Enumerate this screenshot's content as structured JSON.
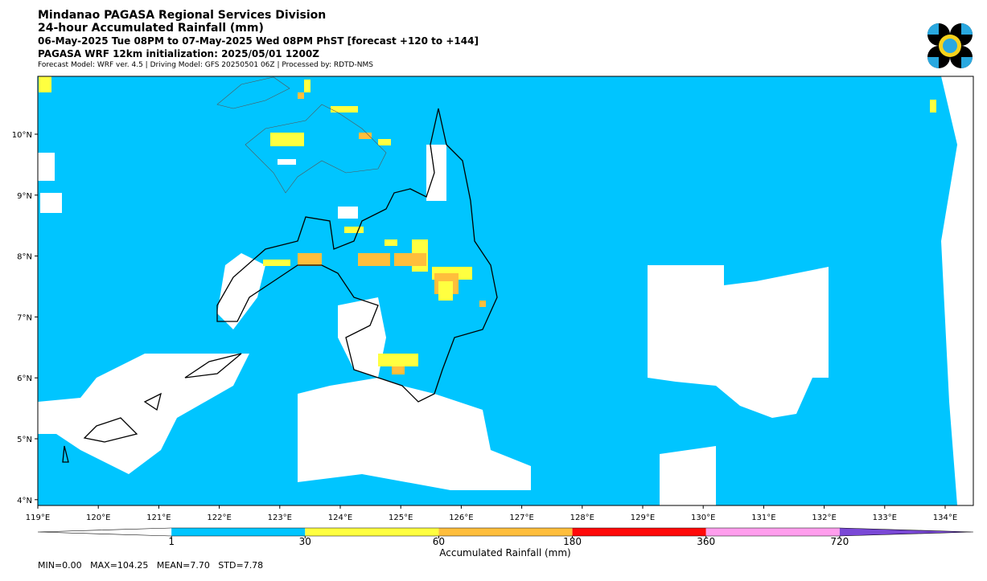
{
  "header": {
    "title": "Mindanao PAGASA Regional Services Division",
    "subtitle": "24-hour Accumulated Rainfall (mm)",
    "period": "06-May-2025 Tue 08PM to 07-May-2025 Wed 08PM PhST [forecast +120 to +144]",
    "model": "PAGASA WRF 12km initialization: 2025/05/01 1200Z",
    "credits": "Forecast Model: WRF ver. 4.5 | Driving Model: GFS 20250501 06Z | Processed by: RDTD-NMS"
  },
  "map": {
    "lon_labels": [
      "119°E",
      "120°E",
      "121°E",
      "122°E",
      "123°E",
      "124°E",
      "125°E",
      "126°E",
      "127°E",
      "128°E",
      "129°E",
      "130°E",
      "131°E",
      "132°E",
      "133°E",
      "134°E"
    ],
    "lat_labels": [
      "10°N",
      "9°N",
      "8°N",
      "7°N",
      "6°N",
      "5°N",
      "4°N"
    ]
  },
  "colorbar": {
    "title": "Accumulated Rainfall (mm)",
    "ticks": [
      1,
      30,
      60,
      180,
      360,
      720
    ],
    "colors": [
      "#ffffff",
      "#00c5ff",
      "#ffff40",
      "#ffbe3c",
      "#ff0a0a",
      "#ff9eed",
      "#7a48d6"
    ]
  },
  "stats": "MIN=0.00   MAX=104.25   MEAN=7.70   STD=7.78"
}
